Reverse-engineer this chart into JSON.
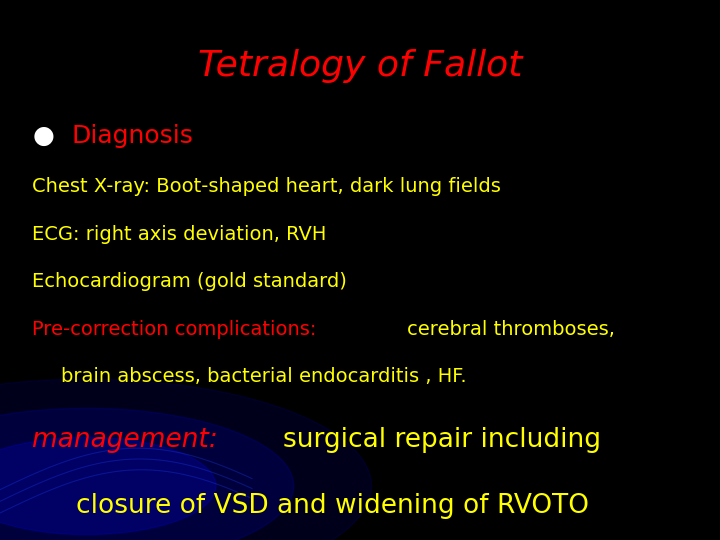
{
  "title": "Tetralogy of Fallot",
  "title_color": "#ff0000",
  "title_fontsize": 26,
  "background_color": "#000000",
  "bullet_color": "#ffffff",
  "diagnosis_color": "#ff0000",
  "diagnosis_text": "Diagnosis",
  "diagnosis_fontsize": 18,
  "yellow_color": "#ffff00",
  "red_color": "#ff0000",
  "body_fontsize": 14,
  "management_fontsize": 19,
  "lines": [
    "Chest X-ray: Boot-shaped heart, dark lung fields",
    "ECG: right axis deviation, RVH",
    "Echocardiogram (gold standard)"
  ],
  "mixed_line1_red": "Pre-correction complications: ",
  "mixed_line1_yellow": "cerebral thromboses,",
  "mixed_line2": "   brain abscess, bacterial endocarditis , HF.",
  "management_red": "management: ",
  "management_yellow": "surgical repair including",
  "management_line2": "   closure of VSD and widening of RVOTO"
}
